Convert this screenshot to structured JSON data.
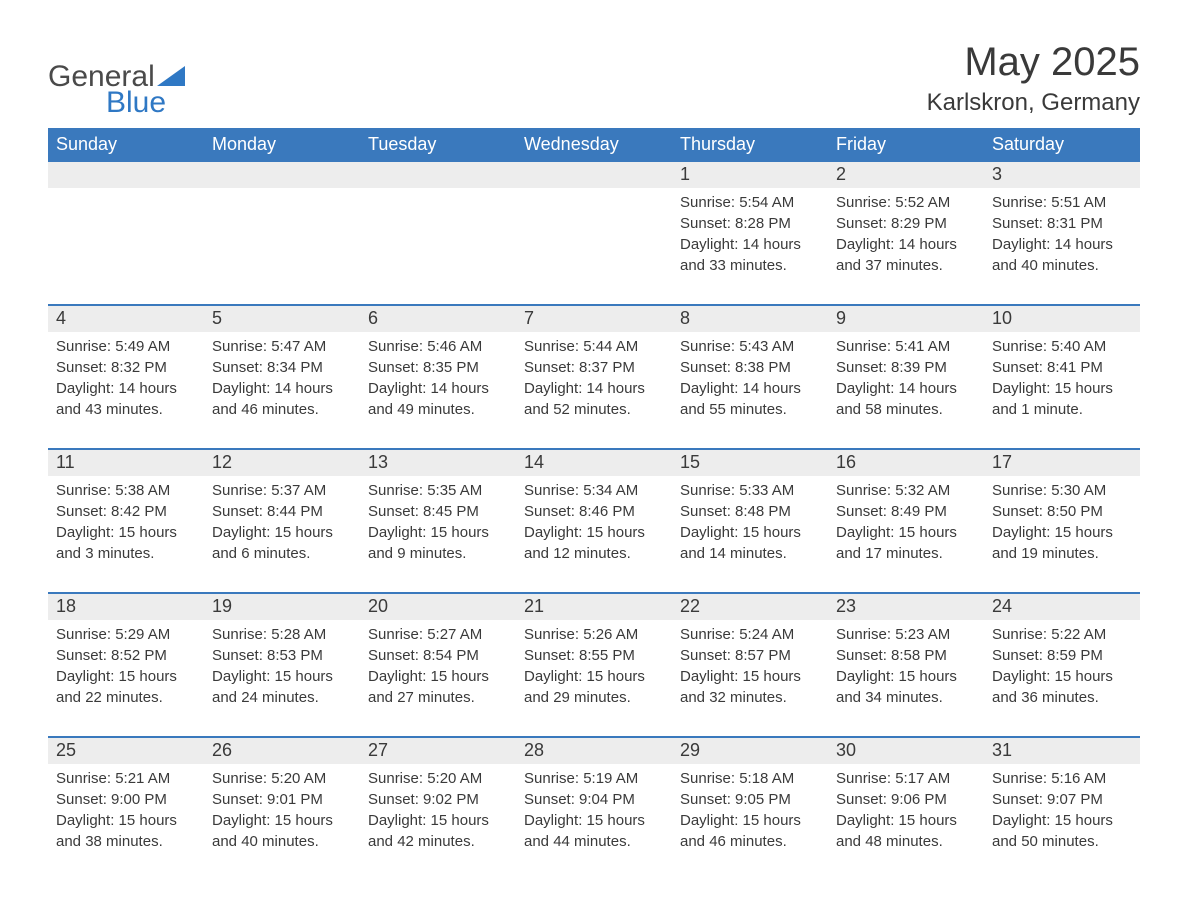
{
  "logo": {
    "text_general": "General",
    "text_blue": "Blue",
    "shape_color": "#2f78c4"
  },
  "header": {
    "month_title": "May 2025",
    "location": "Karlskron, Germany"
  },
  "colors": {
    "header_bg": "#3a79bd",
    "header_text": "#ffffff",
    "date_bg": "#ededed",
    "rule": "#3a79bd",
    "body_text": "#3a3a3a",
    "page_bg": "#ffffff"
  },
  "day_names": [
    "Sunday",
    "Monday",
    "Tuesday",
    "Wednesday",
    "Thursday",
    "Friday",
    "Saturday"
  ],
  "weeks": [
    [
      {
        "date": "",
        "sunrise": "",
        "sunset": "",
        "daylight": ""
      },
      {
        "date": "",
        "sunrise": "",
        "sunset": "",
        "daylight": ""
      },
      {
        "date": "",
        "sunrise": "",
        "sunset": "",
        "daylight": ""
      },
      {
        "date": "",
        "sunrise": "",
        "sunset": "",
        "daylight": ""
      },
      {
        "date": "1",
        "sunrise": "Sunrise: 5:54 AM",
        "sunset": "Sunset: 8:28 PM",
        "daylight": "Daylight: 14 hours and 33 minutes."
      },
      {
        "date": "2",
        "sunrise": "Sunrise: 5:52 AM",
        "sunset": "Sunset: 8:29 PM",
        "daylight": "Daylight: 14 hours and 37 minutes."
      },
      {
        "date": "3",
        "sunrise": "Sunrise: 5:51 AM",
        "sunset": "Sunset: 8:31 PM",
        "daylight": "Daylight: 14 hours and 40 minutes."
      }
    ],
    [
      {
        "date": "4",
        "sunrise": "Sunrise: 5:49 AM",
        "sunset": "Sunset: 8:32 PM",
        "daylight": "Daylight: 14 hours and 43 minutes."
      },
      {
        "date": "5",
        "sunrise": "Sunrise: 5:47 AM",
        "sunset": "Sunset: 8:34 PM",
        "daylight": "Daylight: 14 hours and 46 minutes."
      },
      {
        "date": "6",
        "sunrise": "Sunrise: 5:46 AM",
        "sunset": "Sunset: 8:35 PM",
        "daylight": "Daylight: 14 hours and 49 minutes."
      },
      {
        "date": "7",
        "sunrise": "Sunrise: 5:44 AM",
        "sunset": "Sunset: 8:37 PM",
        "daylight": "Daylight: 14 hours and 52 minutes."
      },
      {
        "date": "8",
        "sunrise": "Sunrise: 5:43 AM",
        "sunset": "Sunset: 8:38 PM",
        "daylight": "Daylight: 14 hours and 55 minutes."
      },
      {
        "date": "9",
        "sunrise": "Sunrise: 5:41 AM",
        "sunset": "Sunset: 8:39 PM",
        "daylight": "Daylight: 14 hours and 58 minutes."
      },
      {
        "date": "10",
        "sunrise": "Sunrise: 5:40 AM",
        "sunset": "Sunset: 8:41 PM",
        "daylight": "Daylight: 15 hours and 1 minute."
      }
    ],
    [
      {
        "date": "11",
        "sunrise": "Sunrise: 5:38 AM",
        "sunset": "Sunset: 8:42 PM",
        "daylight": "Daylight: 15 hours and 3 minutes."
      },
      {
        "date": "12",
        "sunrise": "Sunrise: 5:37 AM",
        "sunset": "Sunset: 8:44 PM",
        "daylight": "Daylight: 15 hours and 6 minutes."
      },
      {
        "date": "13",
        "sunrise": "Sunrise: 5:35 AM",
        "sunset": "Sunset: 8:45 PM",
        "daylight": "Daylight: 15 hours and 9 minutes."
      },
      {
        "date": "14",
        "sunrise": "Sunrise: 5:34 AM",
        "sunset": "Sunset: 8:46 PM",
        "daylight": "Daylight: 15 hours and 12 minutes."
      },
      {
        "date": "15",
        "sunrise": "Sunrise: 5:33 AM",
        "sunset": "Sunset: 8:48 PM",
        "daylight": "Daylight: 15 hours and 14 minutes."
      },
      {
        "date": "16",
        "sunrise": "Sunrise: 5:32 AM",
        "sunset": "Sunset: 8:49 PM",
        "daylight": "Daylight: 15 hours and 17 minutes."
      },
      {
        "date": "17",
        "sunrise": "Sunrise: 5:30 AM",
        "sunset": "Sunset: 8:50 PM",
        "daylight": "Daylight: 15 hours and 19 minutes."
      }
    ],
    [
      {
        "date": "18",
        "sunrise": "Sunrise: 5:29 AM",
        "sunset": "Sunset: 8:52 PM",
        "daylight": "Daylight: 15 hours and 22 minutes."
      },
      {
        "date": "19",
        "sunrise": "Sunrise: 5:28 AM",
        "sunset": "Sunset: 8:53 PM",
        "daylight": "Daylight: 15 hours and 24 minutes."
      },
      {
        "date": "20",
        "sunrise": "Sunrise: 5:27 AM",
        "sunset": "Sunset: 8:54 PM",
        "daylight": "Daylight: 15 hours and 27 minutes."
      },
      {
        "date": "21",
        "sunrise": "Sunrise: 5:26 AM",
        "sunset": "Sunset: 8:55 PM",
        "daylight": "Daylight: 15 hours and 29 minutes."
      },
      {
        "date": "22",
        "sunrise": "Sunrise: 5:24 AM",
        "sunset": "Sunset: 8:57 PM",
        "daylight": "Daylight: 15 hours and 32 minutes."
      },
      {
        "date": "23",
        "sunrise": "Sunrise: 5:23 AM",
        "sunset": "Sunset: 8:58 PM",
        "daylight": "Daylight: 15 hours and 34 minutes."
      },
      {
        "date": "24",
        "sunrise": "Sunrise: 5:22 AM",
        "sunset": "Sunset: 8:59 PM",
        "daylight": "Daylight: 15 hours and 36 minutes."
      }
    ],
    [
      {
        "date": "25",
        "sunrise": "Sunrise: 5:21 AM",
        "sunset": "Sunset: 9:00 PM",
        "daylight": "Daylight: 15 hours and 38 minutes."
      },
      {
        "date": "26",
        "sunrise": "Sunrise: 5:20 AM",
        "sunset": "Sunset: 9:01 PM",
        "daylight": "Daylight: 15 hours and 40 minutes."
      },
      {
        "date": "27",
        "sunrise": "Sunrise: 5:20 AM",
        "sunset": "Sunset: 9:02 PM",
        "daylight": "Daylight: 15 hours and 42 minutes."
      },
      {
        "date": "28",
        "sunrise": "Sunrise: 5:19 AM",
        "sunset": "Sunset: 9:04 PM",
        "daylight": "Daylight: 15 hours and 44 minutes."
      },
      {
        "date": "29",
        "sunrise": "Sunrise: 5:18 AM",
        "sunset": "Sunset: 9:05 PM",
        "daylight": "Daylight: 15 hours and 46 minutes."
      },
      {
        "date": "30",
        "sunrise": "Sunrise: 5:17 AM",
        "sunset": "Sunset: 9:06 PM",
        "daylight": "Daylight: 15 hours and 48 minutes."
      },
      {
        "date": "31",
        "sunrise": "Sunrise: 5:16 AM",
        "sunset": "Sunset: 9:07 PM",
        "daylight": "Daylight: 15 hours and 50 minutes."
      }
    ]
  ]
}
